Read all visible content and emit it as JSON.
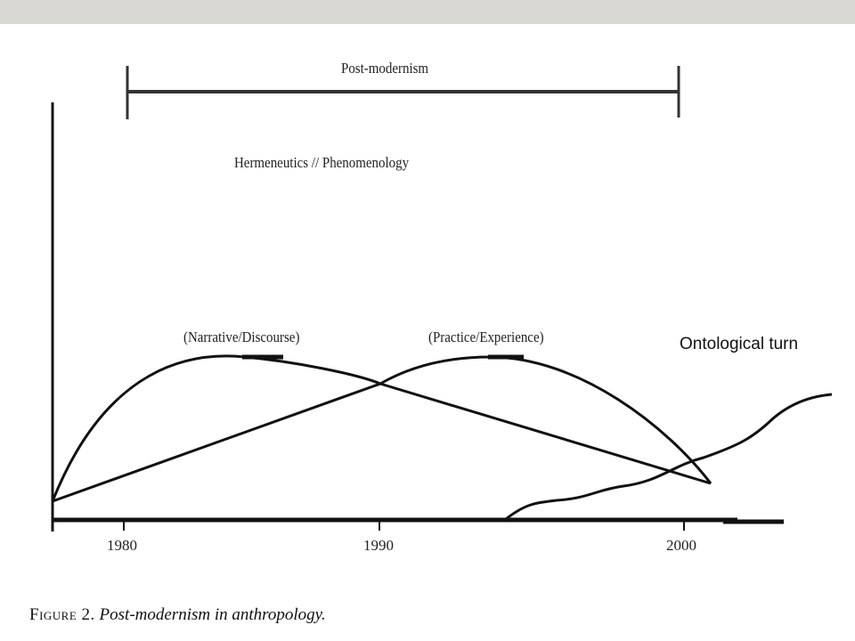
{
  "slide": {
    "top_bar_color": "#d9d8d4",
    "line_color": "#111111"
  },
  "diagram": {
    "period_label": "Post-modernism",
    "subtitle": "Hermeneutics // Phenomenology",
    "curve_labels": {
      "narrative": "(Narrative/Discourse)",
      "practice": "(Practice/Experience)",
      "ontological": "Ontological turn"
    },
    "x_ticks": [
      "1980",
      "1990",
      "2000"
    ]
  },
  "caption": {
    "figure_word": "Figure 2.",
    "text": "Post-modernism in anthropology."
  }
}
